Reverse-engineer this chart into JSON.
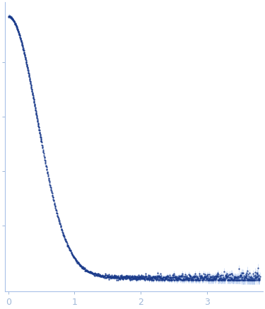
{
  "title": "",
  "xlabel": "",
  "ylabel": "",
  "xlim": [
    -0.05,
    3.85
  ],
  "x_ticks": [
    0,
    1,
    2,
    3
  ],
  "data_color": "#1a3a8a",
  "error_color": "#9ab8e8",
  "bg_color": "#ffffff",
  "spine_color": "#a8c0e8",
  "tick_color": "#a0b8d8",
  "n_points": 1200,
  "q_max": 3.8,
  "I0": 0.95,
  "rg": 2.8,
  "baseline": 0.018,
  "noise_low": 0.0008,
  "noise_high": 0.012,
  "error_low": 0.001,
  "error_high": 0.015,
  "marker_size": 0.7,
  "elinewidth": 0.5
}
